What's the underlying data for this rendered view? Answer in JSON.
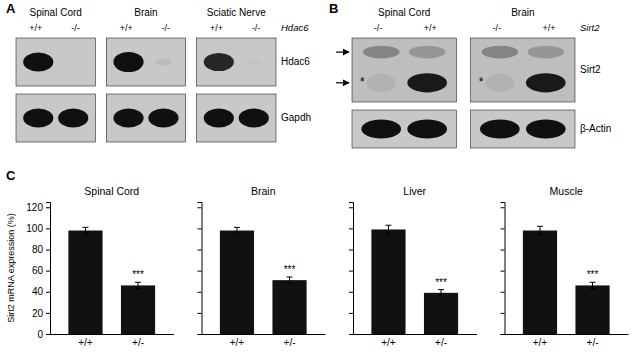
{
  "chart_data": [
    {
      "type": "blot",
      "title": "A",
      "categories": [
        "Spinal Cord",
        "Brain",
        "Sciatic Nerve"
      ],
      "lanes": [
        "+/+",
        "-/-"
      ],
      "gene": "Hdac6",
      "rows": [
        "Hdac6",
        "Gapdh"
      ]
    },
    {
      "type": "blot",
      "title": "B",
      "categories": [
        "Spinal Cord",
        "Brain"
      ],
      "lanes": [
        "-/-",
        "+/+"
      ],
      "gene": "Sirt2",
      "rows": [
        "Sirt2",
        "β-Actin"
      ],
      "annotations": [
        {
          "text": "*"
        }
      ]
    },
    {
      "type": "bar",
      "title": "Spinal Cord",
      "categories": [
        "+/+",
        "+/-"
      ],
      "values": [
        98,
        46
      ],
      "errors": [
        3,
        3
      ],
      "color": "#111111",
      "ylabel": "Sirt2 mRNA expression (%)",
      "ylim": [
        0,
        125
      ],
      "yticks": [
        0,
        20,
        40,
        60,
        80,
        100,
        120
      ],
      "annotations": [
        {
          "text": "C"
        },
        {
          "text": "***",
          "x": "+/-"
        }
      ]
    },
    {
      "type": "bar",
      "title": "Brain",
      "categories": [
        "+/+",
        "+/-"
      ],
      "values": [
        98,
        51
      ],
      "errors": [
        3,
        3
      ],
      "color": "#111111",
      "ylim": [
        0,
        125
      ],
      "yticks": [
        0,
        20,
        40,
        60,
        80,
        100,
        120
      ],
      "tick_labels": "x",
      "annotations": [
        {
          "text": "***",
          "x": "+/-"
        }
      ]
    },
    {
      "type": "bar",
      "title": "Liver",
      "categories": [
        "+/+",
        "+/-"
      ],
      "values": [
        99,
        39
      ],
      "errors": [
        4,
        3
      ],
      "color": "#111111",
      "ylim": [
        0,
        125
      ],
      "yticks": [
        0,
        20,
        40,
        60,
        80,
        100,
        120
      ],
      "tick_labels": "x",
      "annotations": [
        {
          "text": "***",
          "x": "+/-"
        }
      ]
    },
    {
      "type": "bar",
      "title": "Muscle",
      "categories": [
        "+/+",
        "+/-"
      ],
      "values": [
        98,
        46
      ],
      "errors": [
        4,
        3
      ],
      "color": "#111111",
      "ylim": [
        0,
        125
      ],
      "yticks": [
        0,
        20,
        40,
        60,
        80,
        100,
        120
      ],
      "tick_labels": "x",
      "annotations": [
        {
          "text": "***",
          "x": "+/-"
        }
      ]
    }
  ]
}
